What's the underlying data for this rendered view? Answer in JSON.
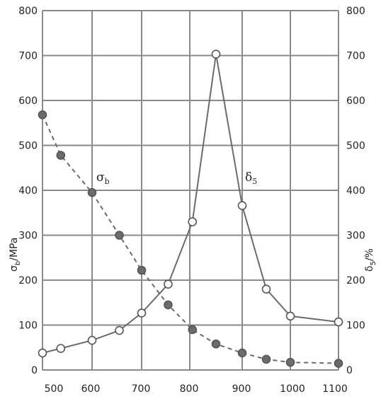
{
  "chart_data": {
    "type": "line",
    "x": [
      480,
      535,
      600,
      655,
      700,
      755,
      805,
      850,
      900,
      950,
      1000,
      1100
    ],
    "xlim": [
      480,
      1100
    ],
    "x_tick_labels": [
      "500",
      "600",
      "700",
      "800",
      "900",
      "1000",
      "1100"
    ],
    "ylim_left": [
      0,
      800
    ],
    "ylim_right": [
      0,
      800
    ],
    "y_tick_labels": [
      "0",
      "100",
      "200",
      "300",
      "400",
      "500",
      "600",
      "700",
      "800"
    ],
    "ylabel_left": {
      "main": "σ",
      "sub": "b",
      "rest": "/MPa"
    },
    "ylabel_right": {
      "main": "δ",
      "sub": "5",
      "rest": "/%"
    },
    "grid": true,
    "series": [
      {
        "name": "σb",
        "label_main": "σ",
        "label_sub": "b",
        "axis": "left",
        "line_style": "dashed",
        "marker": "filled",
        "color": "#6b6b6b",
        "x": [
          480,
          535,
          600,
          655,
          700,
          755,
          805,
          850,
          900,
          950,
          1000,
          1100
        ],
        "values": [
          568,
          478,
          395,
          300,
          222,
          145,
          90,
          58,
          38,
          24,
          17,
          15
        ]
      },
      {
        "name": "δ5",
        "label_main": "δ",
        "label_sub": "5",
        "axis": "right",
        "line_style": "solid",
        "marker": "open",
        "color": "#6b6b6b",
        "x": [
          480,
          535,
          600,
          655,
          700,
          755,
          805,
          850,
          900,
          950,
          1000,
          1100
        ],
        "values": [
          38,
          48,
          66,
          88,
          127,
          191,
          330,
          703,
          366,
          180,
          120,
          107
        ]
      }
    ]
  }
}
